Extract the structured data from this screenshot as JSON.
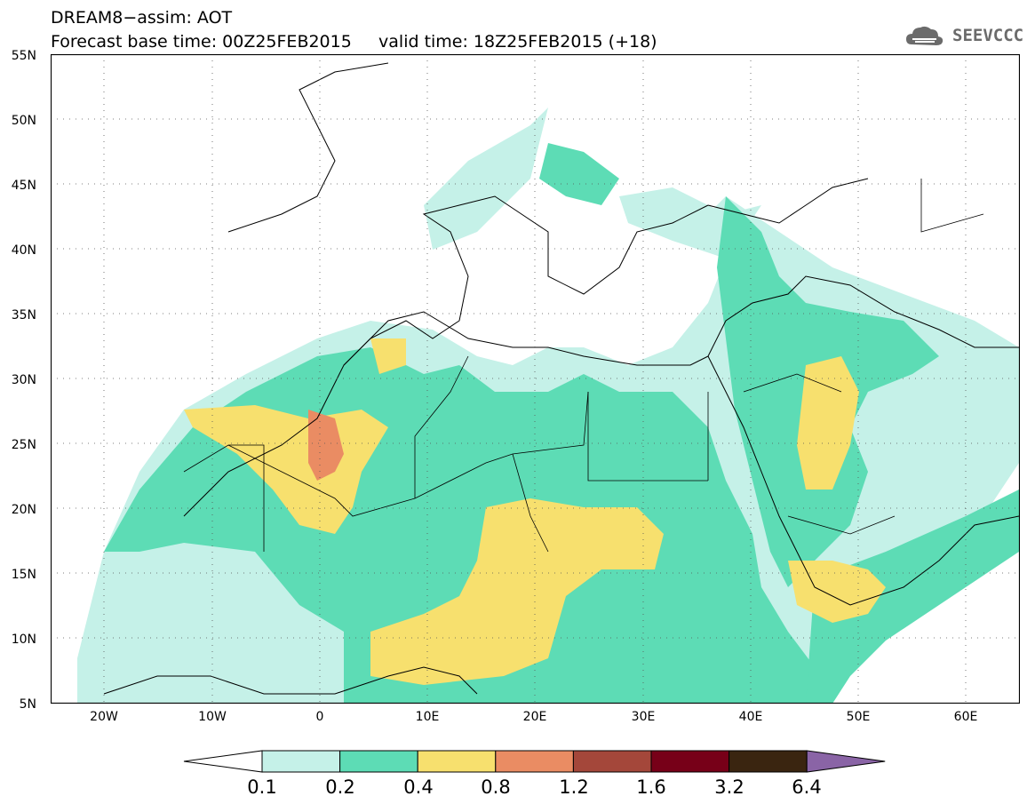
{
  "header": {
    "title_line1": "DREAM8−assim: AOT",
    "title_line2": "Forecast base time: 00Z25FEB2015     valid time: 18Z25FEB2015 (+18)",
    "logo_text": "SEEVCCC"
  },
  "map": {
    "lon_range": [
      -25,
      65
    ],
    "lat_range": [
      5,
      55
    ],
    "lat_labels": [
      "55N",
      "50N",
      "45N",
      "40N",
      "35N",
      "30N",
      "25N",
      "20N",
      "15N",
      "10N",
      "5N"
    ],
    "lon_labels": [
      "20W",
      "10W",
      "0",
      "10E",
      "20E",
      "30E",
      "40E",
      "50E",
      "60E"
    ]
  },
  "colorbar": {
    "colors": [
      "#ffffff",
      "#c5f1e8",
      "#5ddcb5",
      "#f7e06e",
      "#ea8c63",
      "#a4473a",
      "#770018",
      "#3a2510",
      "#8a64a6"
    ],
    "labels": [
      "0.1",
      "0.2",
      "0.4",
      "0.8",
      "1.2",
      "1.6",
      "3.2",
      "6.4"
    ]
  }
}
